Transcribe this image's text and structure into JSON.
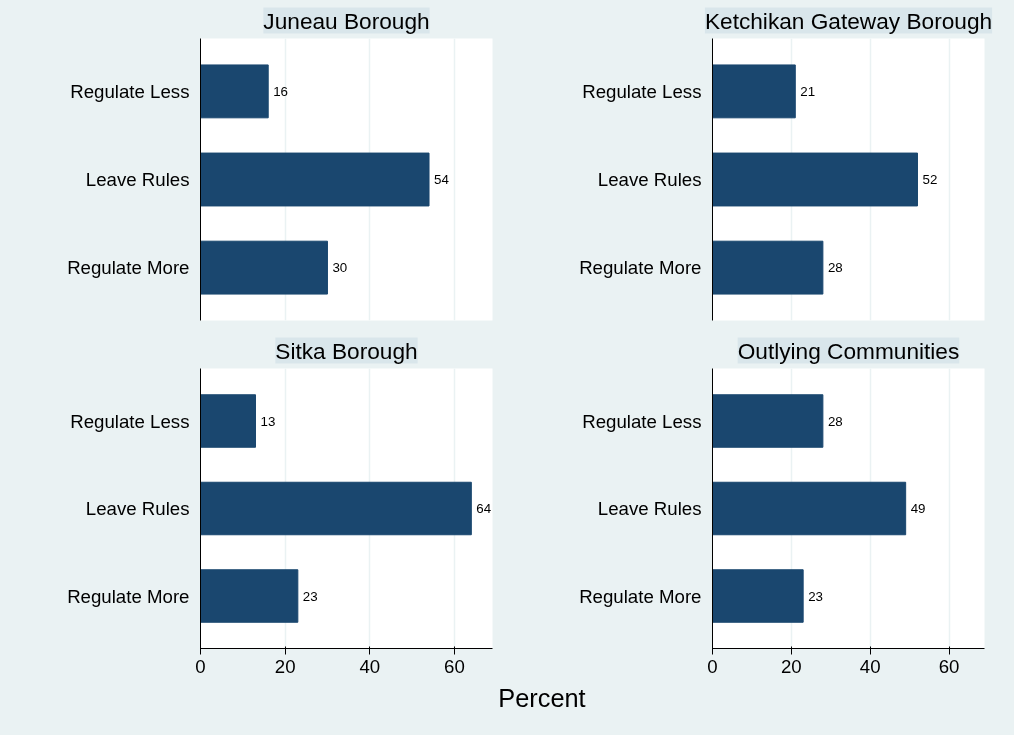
{
  "chart_data": [
    {
      "type": "bar",
      "orientation": "horizontal",
      "title": "Juneau Borough",
      "categories": [
        "Regulate Less",
        "Leave Rules",
        "Regulate More"
      ],
      "values": [
        16,
        54,
        30
      ],
      "color": "#1a476f",
      "data_labels": true,
      "xlim": [
        0,
        69
      ],
      "xticks": [
        0,
        20,
        40,
        60
      ],
      "grid": "x",
      "tick_labels": "y"
    },
    {
      "type": "bar",
      "orientation": "horizontal",
      "title": "Ketchikan Gateway Borough",
      "categories": [
        "Regulate Less",
        "Leave Rules",
        "Regulate More"
      ],
      "values": [
        21,
        52,
        28
      ],
      "color": "#1a476f",
      "data_labels": true,
      "xlim": [
        0,
        69
      ],
      "xticks": [
        0,
        20,
        40,
        60
      ],
      "grid": "x",
      "tick_labels": "y"
    },
    {
      "type": "bar",
      "orientation": "horizontal",
      "title": "Sitka Borough",
      "categories": [
        "Regulate Less",
        "Leave Rules",
        "Regulate More"
      ],
      "values": [
        13,
        64,
        23
      ],
      "color": "#1a476f",
      "data_labels": true,
      "xlim": [
        0,
        69
      ],
      "xticks": [
        0,
        20,
        40,
        60
      ],
      "grid": "x",
      "xlabel": "Percent"
    },
    {
      "type": "bar",
      "orientation": "horizontal",
      "title": "Outlying Communities",
      "categories": [
        "Regulate Less",
        "Leave Rules",
        "Regulate More"
      ],
      "values": [
        28,
        49,
        23
      ],
      "color": "#1a476f",
      "data_labels": true,
      "xlim": [
        0,
        69
      ],
      "xticks": [
        0,
        20,
        40,
        60
      ],
      "grid": "x"
    }
  ]
}
